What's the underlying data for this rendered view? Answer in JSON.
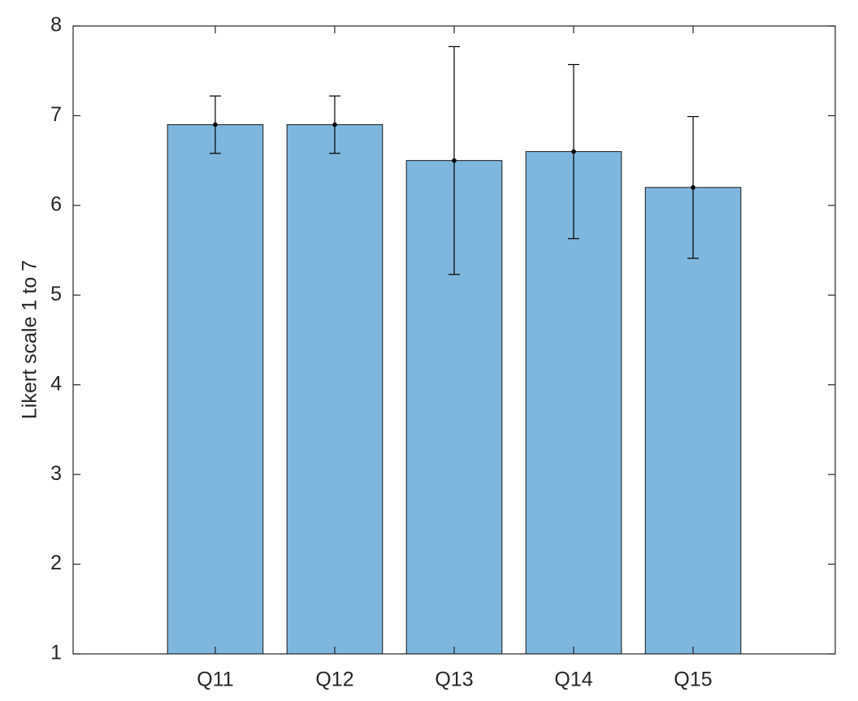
{
  "chart_data": {
    "type": "bar",
    "ylabel": "Likert scale 1 to 7",
    "categories": [
      "Q11",
      "Q12",
      "Q13",
      "Q14",
      "Q15"
    ],
    "values": [
      6.9,
      6.9,
      6.5,
      6.6,
      6.2
    ],
    "errors": [
      0.32,
      0.32,
      1.27,
      0.97,
      0.79
    ],
    "color": "#7eb6dd",
    "ylim": [
      1,
      8
    ],
    "yticks": [
      1,
      2,
      3,
      4,
      5,
      6,
      7,
      8
    ],
    "grid": false
  }
}
